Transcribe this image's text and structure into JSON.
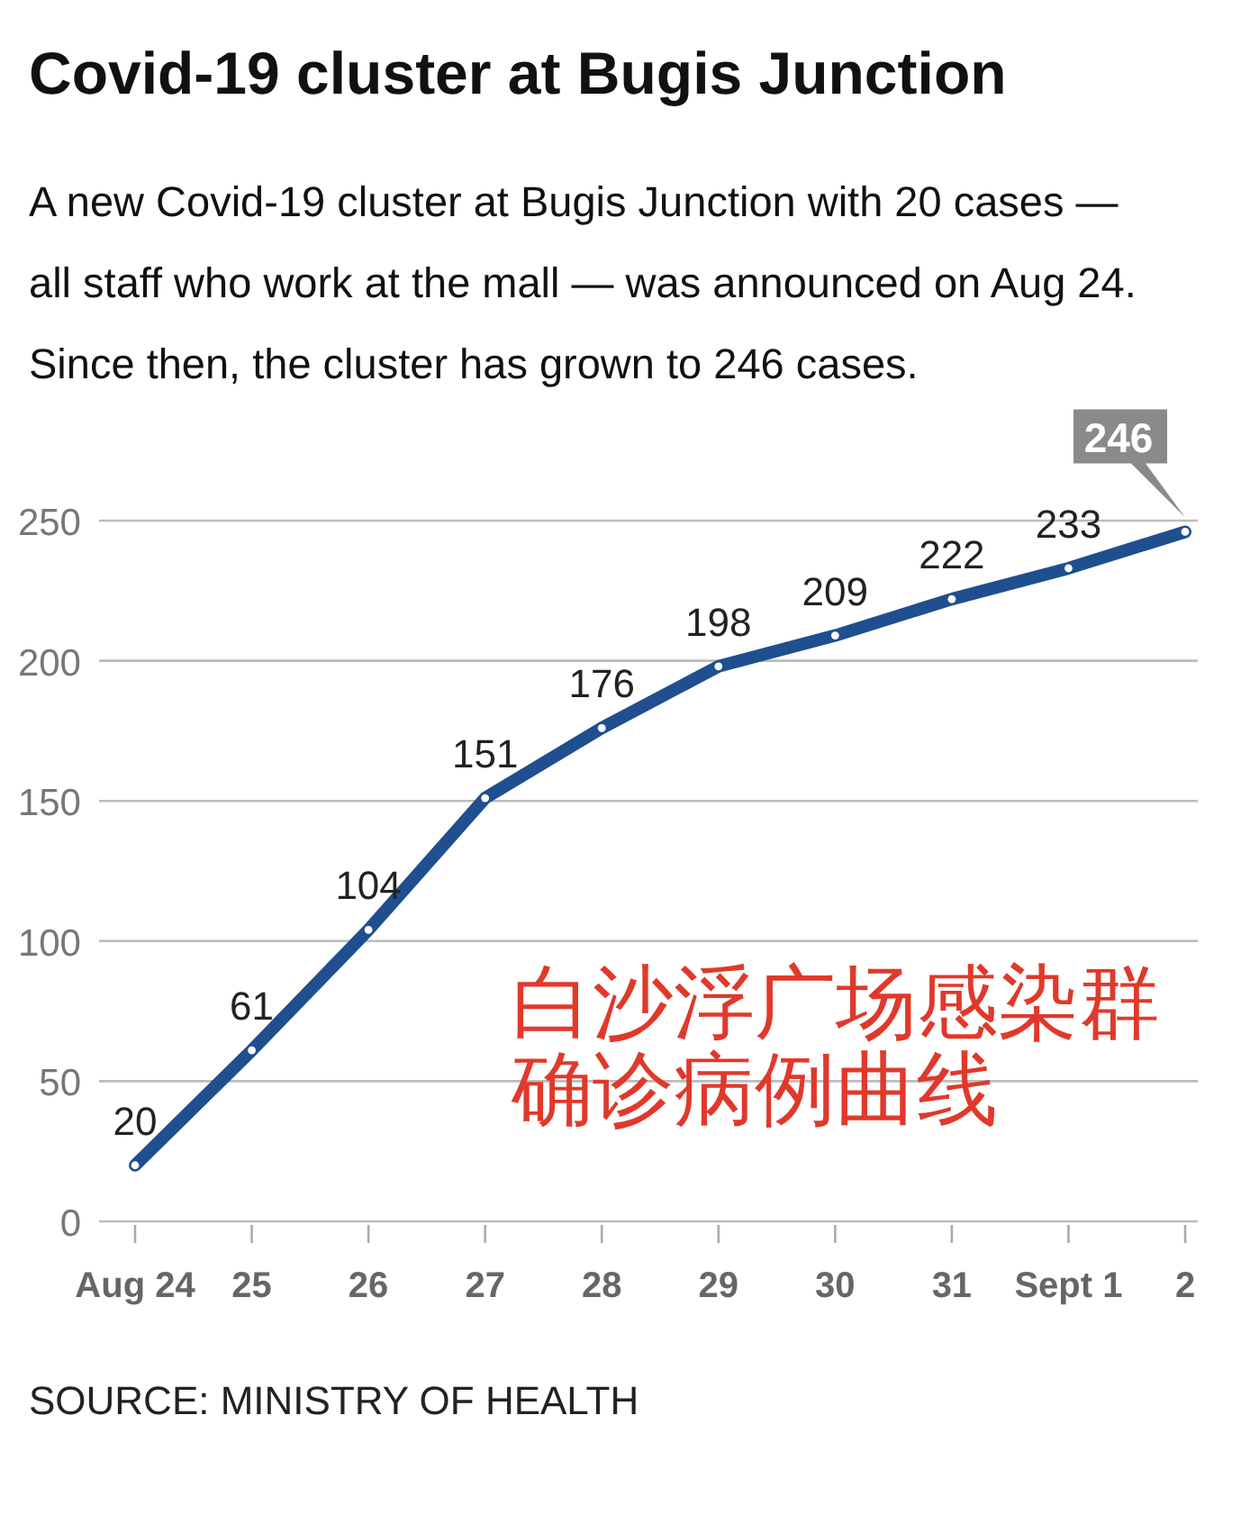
{
  "chart_data": {
    "type": "line",
    "title": "Covid-19 cluster at Bugis Junction",
    "subtitle": "A new Covid-19 cluster at Bugis Junction with 20 cases — all staff who work at the mall — was announced on Aug 24. Since then, the cluster has grown to 246 cases.",
    "categories": [
      "Aug 24",
      "25",
      "26",
      "27",
      "28",
      "29",
      "30",
      "31",
      "Sept 1",
      "2"
    ],
    "series": [
      {
        "color": "#1f4f8f",
        "values": [
          20,
          61,
          104,
          151,
          176,
          198,
          209,
          222,
          233,
          246
        ]
      }
    ],
    "ylim": [
      0,
      250
    ],
    "yticks": [
      0,
      50,
      100,
      150,
      200,
      250
    ],
    "grid": "y",
    "marker": "circle",
    "line_style": "solid",
    "data_labels": true,
    "annotations": [
      "白沙浮广场感染群确诊病例曲线",
      "SOURCE: MINISTRY OF HEALTH"
    ]
  }
}
